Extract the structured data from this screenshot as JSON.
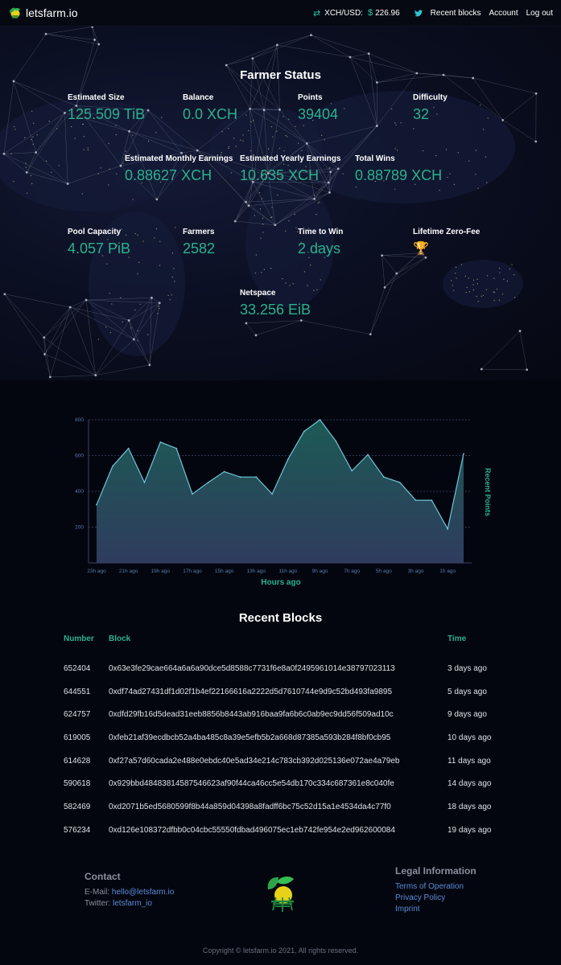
{
  "nav": {
    "brand": "letsfarm.io",
    "price_label": "XCH/USD:",
    "price_value": "226.96",
    "recent_blocks": "Recent blocks",
    "account": "Account",
    "logout": "Log out"
  },
  "farmer_status": {
    "title": "Farmer Status",
    "stats": [
      {
        "label": "Estimated Size",
        "value": "125.509 TiB"
      },
      {
        "label": "Balance",
        "value": "0.0 XCH"
      },
      {
        "label": "Points",
        "value": "39404"
      },
      {
        "label": "Difficulty",
        "value": "32"
      },
      {
        "label": "Estimated Monthly Earnings",
        "value": "0.88627 XCH"
      },
      {
        "label": "Estimated Yearly Earnings",
        "value": "10.635 XCH"
      },
      {
        "label": "Total Wins",
        "value": "0.88789 XCH"
      },
      {
        "label": "Pool Capacity",
        "value": "4.057 PiB"
      },
      {
        "label": "Farmers",
        "value": "2582"
      },
      {
        "label": "Time to Win",
        "value": "2 days"
      },
      {
        "label": "Lifetime Zero-Fee",
        "value": "🏆"
      },
      {
        "label": "Netspace",
        "value": "33.256 EiB"
      }
    ]
  },
  "chart_data": {
    "type": "area",
    "xlabel": "Hours ago",
    "ylabel": "Recent Points",
    "ylim": [
      0,
      800
    ],
    "yticks": [
      200,
      400,
      600,
      800
    ],
    "x": [
      23,
      22,
      21,
      20,
      19,
      18,
      17,
      16,
      15,
      14,
      13,
      12,
      11,
      10,
      9,
      8,
      7,
      6,
      5,
      4,
      3,
      2,
      1,
      0
    ],
    "xtick_labels": [
      "23h ago",
      "21h ago",
      "19h ago",
      "17h ago",
      "15h ago",
      "13h ago",
      "11h ago",
      "9h ago",
      "7h ago",
      "5h ago",
      "3h ago",
      "1h ago"
    ],
    "values": [
      325,
      540,
      640,
      450,
      675,
      640,
      385,
      450,
      510,
      480,
      480,
      385,
      580,
      735,
      800,
      680,
      515,
      605,
      480,
      450,
      350,
      350,
      190,
      610
    ],
    "grid": true,
    "colors": {
      "line": "#6ec6d8",
      "fill_top": "#1c5a54",
      "fill_bottom": "#2f3c5e"
    }
  },
  "recent_blocks": {
    "title": "Recent Blocks",
    "headers": {
      "number": "Number",
      "block": "Block",
      "time": "Time"
    },
    "rows": [
      {
        "number": "652404",
        "block": "0x63e3fe29cae664a6a6a90dce5d8588c7731f6e8a0f2495961014e38797023113",
        "time": "3 days ago"
      },
      {
        "number": "644551",
        "block": "0xdf74ad27431df1d02f1b4ef22166616a2222d5d7610744e9d9c52bd493fa9895",
        "time": "5 days ago"
      },
      {
        "number": "624757",
        "block": "0xdfd29fb16d5dead31eeb8856b8443ab916baa9fa6b6c0ab9ec9dd56f509ad10c",
        "time": "9 days ago"
      },
      {
        "number": "619005",
        "block": "0xfeb21af39ecdbcb52a4ba485c8a39e5efb5b2a668d87385a593b284f8bf0cb95",
        "time": "10 days ago"
      },
      {
        "number": "614628",
        "block": "0xf27a57d60cada2e488e0ebdc40e5ad34e214c783cb392d025136e072ae4a79eb",
        "time": "11 days ago"
      },
      {
        "number": "590618",
        "block": "0x929bbd48483814587546623af90f44ca46cc5e54db170c334c687361e8c040fe",
        "time": "14 days ago"
      },
      {
        "number": "582469",
        "block": "0xd2071b5ed5680599f8b44a859d04398a8fadff6bc75c52d15a1e4534da4c77f0",
        "time": "18 days ago"
      },
      {
        "number": "576234",
        "block": "0xd126e108372dfbb0c04cbc55550fdbad496075ec1eb742fe954e2ed962600084",
        "time": "19 days ago"
      }
    ]
  },
  "footer": {
    "contact_title": "Contact",
    "email_label": "E-Mail:",
    "email_value": "hello@letsfarm.io",
    "twitter_label": "Twitter:",
    "twitter_value": "letsfarm_io",
    "legal_title": "Legal Information",
    "legal_links": [
      "Terms of Operation",
      "Privacy Policy",
      "Imprint"
    ],
    "copyright": "Copyright © letsfarm.io 2021. All rights reserved."
  }
}
